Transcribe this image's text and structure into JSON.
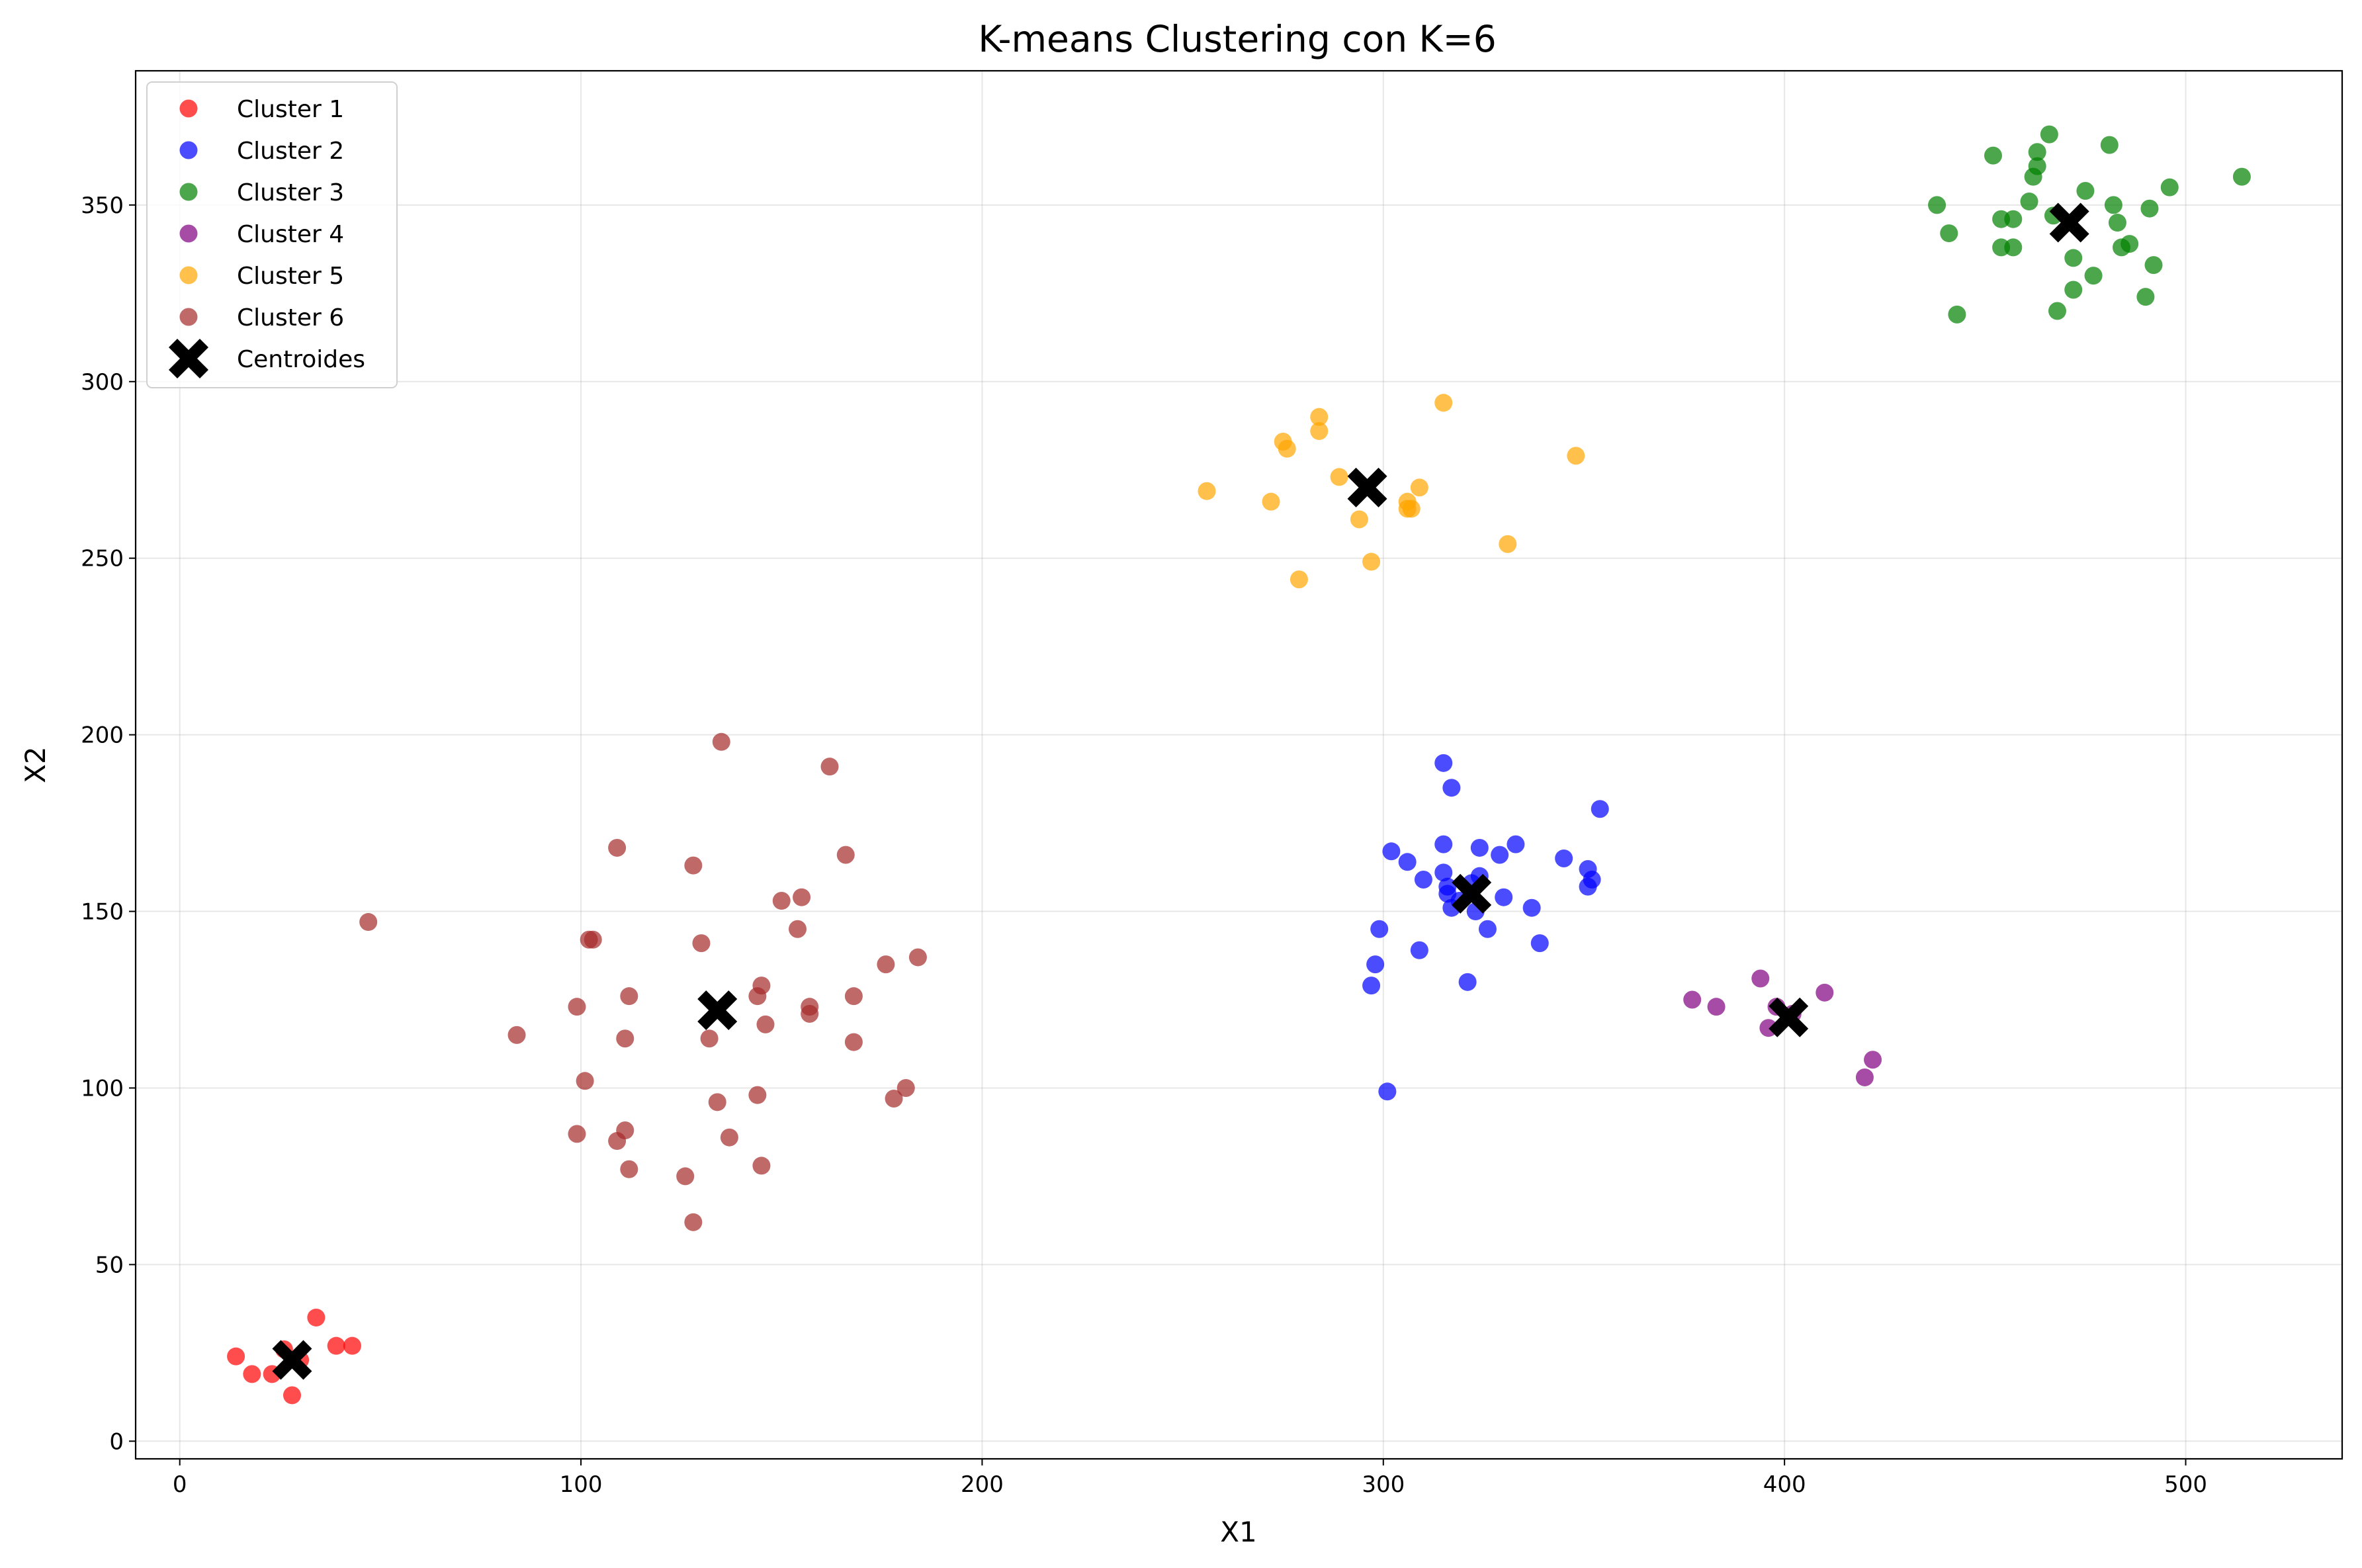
{
  "chart_data": {
    "type": "scatter",
    "title": "K-means Clustering con K=6",
    "xlabel": "X1",
    "ylabel": "X2",
    "xlim": [
      -11,
      539
    ],
    "ylim": [
      -5,
      388
    ],
    "xticks": [
      0,
      100,
      200,
      300,
      400,
      500
    ],
    "yticks": [
      0,
      50,
      100,
      150,
      200,
      250,
      300,
      350
    ],
    "grid": true,
    "legend_position": "upper left",
    "series": [
      {
        "name": "Cluster 1",
        "color": "#ff0000",
        "points": [
          [
            14,
            24
          ],
          [
            18,
            19
          ],
          [
            23,
            19
          ],
          [
            26,
            26
          ],
          [
            28,
            13
          ],
          [
            30,
            23
          ],
          [
            34,
            35
          ],
          [
            39,
            27
          ],
          [
            43,
            27
          ]
        ]
      },
      {
        "name": "Cluster 2",
        "color": "#0000ff",
        "points": [
          [
            297,
            129
          ],
          [
            298,
            135
          ],
          [
            299,
            145
          ],
          [
            301,
            99
          ],
          [
            302,
            167
          ],
          [
            306,
            164
          ],
          [
            309,
            139
          ],
          [
            310,
            159
          ],
          [
            315,
            169
          ],
          [
            315,
            192
          ],
          [
            315,
            161
          ],
          [
            316,
            155
          ],
          [
            316,
            157
          ],
          [
            317,
            151
          ],
          [
            317,
            185
          ],
          [
            319,
            153
          ],
          [
            321,
            130
          ],
          [
            322,
            158
          ],
          [
            323,
            150
          ],
          [
            324,
            168
          ],
          [
            324,
            160
          ],
          [
            326,
            145
          ],
          [
            329,
            166
          ],
          [
            330,
            154
          ],
          [
            333,
            169
          ],
          [
            337,
            151
          ],
          [
            339,
            141
          ],
          [
            345,
            165
          ],
          [
            351,
            157
          ],
          [
            351,
            162
          ],
          [
            352,
            159
          ],
          [
            354,
            179
          ]
        ]
      },
      {
        "name": "Cluster 3",
        "color": "#008000",
        "points": [
          [
            438,
            350
          ],
          [
            441,
            342
          ],
          [
            443,
            319
          ],
          [
            452,
            364
          ],
          [
            454,
            346
          ],
          [
            454,
            338
          ],
          [
            457,
            346
          ],
          [
            457,
            338
          ],
          [
            461,
            351
          ],
          [
            462,
            358
          ],
          [
            463,
            361
          ],
          [
            463,
            365
          ],
          [
            466,
            370
          ],
          [
            467,
            347
          ],
          [
            468,
            320
          ],
          [
            472,
            335
          ],
          [
            472,
            326
          ],
          [
            475,
            354
          ],
          [
            477,
            330
          ],
          [
            481,
            367
          ],
          [
            482,
            350
          ],
          [
            483,
            345
          ],
          [
            484,
            338
          ],
          [
            486,
            339
          ],
          [
            490,
            324
          ],
          [
            491,
            349
          ],
          [
            492,
            333
          ],
          [
            496,
            355
          ],
          [
            514,
            358
          ]
        ]
      },
      {
        "name": "Cluster 4",
        "color": "#800080",
        "points": [
          [
            377,
            125
          ],
          [
            383,
            123
          ],
          [
            394,
            131
          ],
          [
            396,
            117
          ],
          [
            398,
            123
          ],
          [
            402,
            121
          ],
          [
            410,
            127
          ],
          [
            420,
            103
          ],
          [
            422,
            108
          ]
        ]
      },
      {
        "name": "Cluster 5",
        "color": "#ffa500",
        "points": [
          [
            256,
            269
          ],
          [
            272,
            266
          ],
          [
            275,
            283
          ],
          [
            276,
            281
          ],
          [
            279,
            244
          ],
          [
            284,
            290
          ],
          [
            284,
            286
          ],
          [
            289,
            273
          ],
          [
            294,
            261
          ],
          [
            297,
            249
          ],
          [
            306,
            266
          ],
          [
            306,
            264
          ],
          [
            307,
            264
          ],
          [
            309,
            270
          ],
          [
            315,
            294
          ],
          [
            331,
            254
          ],
          [
            348,
            279
          ]
        ]
      },
      {
        "name": "Cluster 6",
        "color": "#a52a2a",
        "points": [
          [
            47,
            147
          ],
          [
            84,
            115
          ],
          [
            99,
            123
          ],
          [
            99,
            87
          ],
          [
            101,
            102
          ],
          [
            102,
            142
          ],
          [
            103,
            142
          ],
          [
            109,
            85
          ],
          [
            109,
            168
          ],
          [
            111,
            114
          ],
          [
            111,
            88
          ],
          [
            112,
            126
          ],
          [
            112,
            77
          ],
          [
            126,
            75
          ],
          [
            128,
            163
          ],
          [
            128,
            62
          ],
          [
            130,
            141
          ],
          [
            132,
            114
          ],
          [
            134,
            96
          ],
          [
            135,
            198
          ],
          [
            137,
            86
          ],
          [
            144,
            126
          ],
          [
            144,
            98
          ],
          [
            145,
            129
          ],
          [
            145,
            78
          ],
          [
            146,
            118
          ],
          [
            150,
            153
          ],
          [
            154,
            145
          ],
          [
            155,
            154
          ],
          [
            157,
            123
          ],
          [
            157,
            121
          ],
          [
            162,
            191
          ],
          [
            166,
            166
          ],
          [
            168,
            126
          ],
          [
            168,
            113
          ],
          [
            176,
            135
          ],
          [
            178,
            97
          ],
          [
            181,
            100
          ],
          [
            184,
            137
          ]
        ]
      }
    ],
    "centroids": {
      "name": "Centroides",
      "color": "#000000",
      "points": [
        [
          28,
          23
        ],
        [
          322,
          155
        ],
        [
          471,
          345
        ],
        [
          401,
          120
        ],
        [
          296,
          270
        ],
        [
          134,
          122
        ]
      ]
    }
  }
}
